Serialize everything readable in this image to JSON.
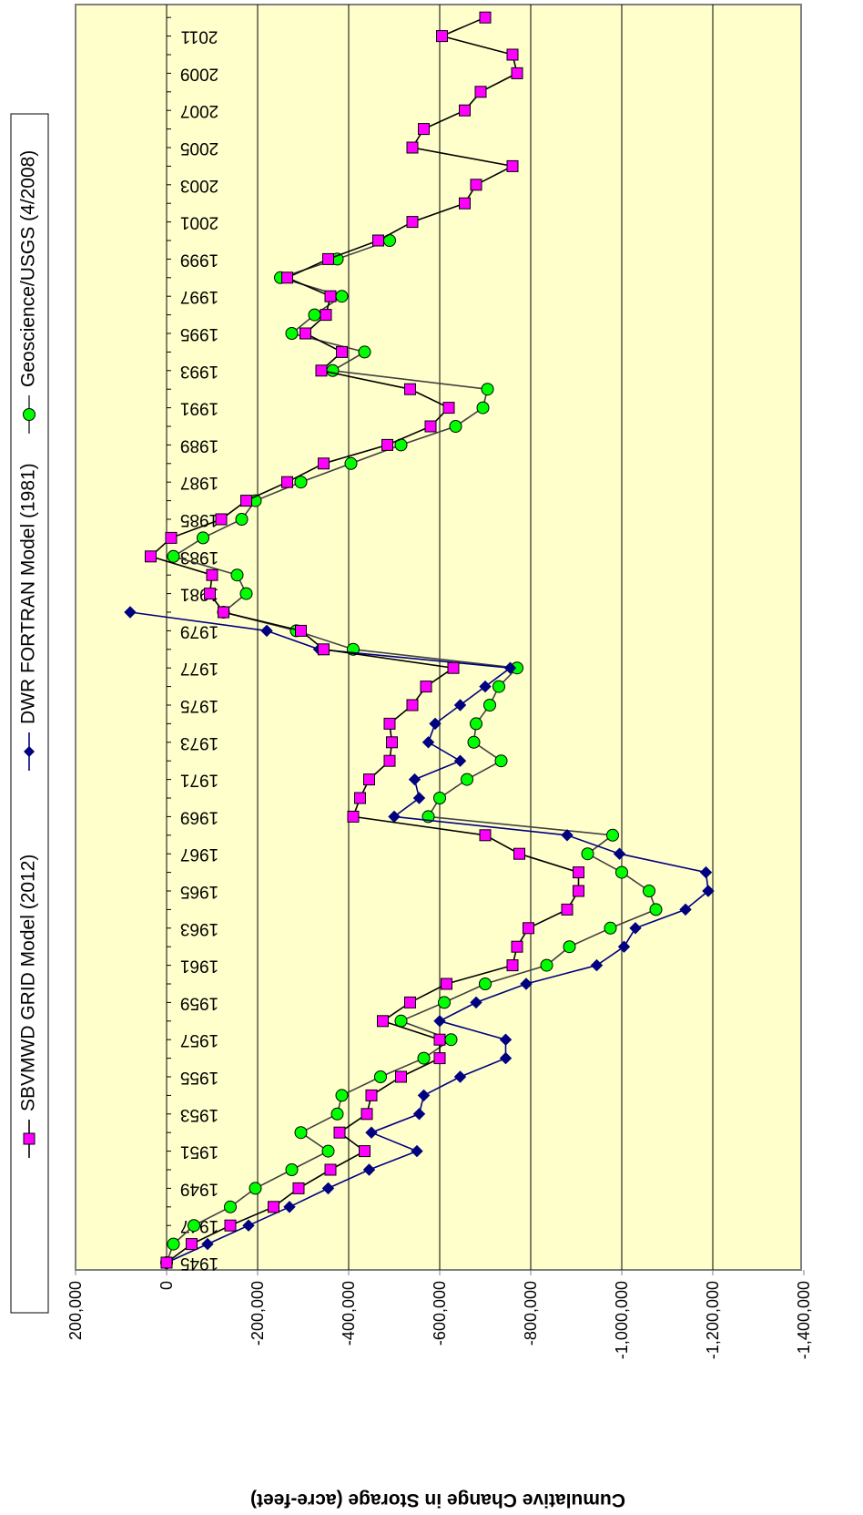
{
  "chart_data": {
    "type": "line",
    "orientation": "rotated-90-clockwise",
    "ylabel": "Cumulative Change in Storage (acre-feet)",
    "ylim": [
      -1400000,
      200000
    ],
    "yticks": [
      200000,
      0,
      -200000,
      -400000,
      -600000,
      -800000,
      -1000000,
      -1200000,
      -1400000
    ],
    "ytick_labels": [
      "200,000",
      "0",
      "-200,000",
      "-400,000",
      "-600,000",
      "-800,000",
      "-1,000,000",
      "-1,200,000",
      "-1,400,000"
    ],
    "xlim": [
      1944.8,
      2012.3
    ],
    "xticks": [
      1945,
      1947,
      1949,
      1951,
      1953,
      1955,
      1957,
      1959,
      1961,
      1963,
      1965,
      1967,
      1969,
      1971,
      1973,
      1975,
      1977,
      1979,
      1981,
      1983,
      1985,
      1987,
      1989,
      1991,
      1993,
      1995,
      1997,
      1999,
      2001,
      2003,
      2005,
      2007,
      2009,
      2011
    ],
    "grid": true,
    "background": "#ffffcc",
    "legend_position": "top",
    "series": [
      {
        "name": "SBVMWD GRID Model (2012)",
        "color": "#000000",
        "marker": "square",
        "marker_color": "#ff00ff",
        "x": [
          1945,
          1946,
          1947,
          1948,
          1949,
          1950,
          1951,
          1952,
          1953,
          1954,
          1955,
          1956,
          1957,
          1958,
          1959,
          1960,
          1961,
          1962,
          1963,
          1964,
          1965,
          1966,
          1967,
          1968,
          1969,
          1970,
          1971,
          1972,
          1973,
          1974,
          1975,
          1976,
          1977,
          1978,
          1979,
          1980,
          1981,
          1982,
          1983,
          1984,
          1985,
          1986,
          1987,
          1988,
          1989,
          1990,
          1991,
          1992,
          1993,
          1994,
          1995,
          1996,
          1997,
          1998,
          1999,
          2000,
          2001,
          2002,
          2003,
          2004,
          2005,
          2006,
          2007,
          2008,
          2009,
          2010,
          2011,
          2012
        ],
        "y": [
          0,
          -55000,
          -140000,
          -235000,
          -290000,
          -360000,
          -435000,
          -380000,
          -440000,
          -450000,
          -515000,
          -600000,
          -600000,
          -475000,
          -535000,
          -615000,
          -760000,
          -770000,
          -795000,
          -880000,
          -905000,
          -905000,
          -775000,
          -700000,
          -410000,
          -425000,
          -445000,
          -490000,
          -495000,
          -490000,
          -540000,
          -570000,
          -630000,
          -345000,
          -295000,
          -125000,
          -95000,
          -100000,
          35000,
          -10000,
          -120000,
          -175000,
          -265000,
          -345000,
          -485000,
          -580000,
          -620000,
          -535000,
          -340000,
          -385000,
          -305000,
          -350000,
          -360000,
          -265000,
          -355000,
          -465000,
          -540000,
          -655000,
          -680000,
          -760000,
          -540000,
          -565000,
          -655000,
          -690000,
          -770000,
          -760000,
          -605000,
          -700000
        ]
      },
      {
        "name": "DWR FORTRAN Model (1981)",
        "color": "#000080",
        "marker": "diamond",
        "marker_color": "#000080",
        "x": [
          1945,
          1946,
          1947,
          1948,
          1949,
          1950,
          1951,
          1952,
          1953,
          1954,
          1955,
          1956,
          1957,
          1958,
          1959,
          1960,
          1961,
          1962,
          1963,
          1964,
          1965,
          1966,
          1967,
          1968,
          1969,
          1970,
          1971,
          1972,
          1973,
          1974,
          1975,
          1976,
          1977,
          1978,
          1979,
          1980
        ],
        "y": [
          0,
          -90000,
          -180000,
          -270000,
          -355000,
          -445000,
          -550000,
          -450000,
          -555000,
          -565000,
          -645000,
          -745000,
          -745000,
          -600000,
          -680000,
          -790000,
          -945000,
          -1005000,
          -1030000,
          -1140000,
          -1190000,
          -1185000,
          -995000,
          -880000,
          -500000,
          -555000,
          -545000,
          -645000,
          -575000,
          -590000,
          -645000,
          -700000,
          -755000,
          -335000,
          -220000,
          80000
        ]
      },
      {
        "name": "Geoscience/USGS (4/2008)",
        "color": "#404040",
        "marker": "circle",
        "marker_color": "#00ff00",
        "x": [
          1945,
          1946,
          1947,
          1948,
          1949,
          1950,
          1951,
          1952,
          1953,
          1954,
          1955,
          1956,
          1957,
          1958,
          1959,
          1960,
          1961,
          1962,
          1963,
          1964,
          1965,
          1966,
          1967,
          1968,
          1969,
          1970,
          1971,
          1972,
          1973,
          1974,
          1975,
          1976,
          1977,
          1978,
          1979,
          1980,
          1981,
          1982,
          1983,
          1984,
          1985,
          1986,
          1987,
          1988,
          1989,
          1990,
          1991,
          1992,
          1993,
          1994,
          1995,
          1996,
          1997,
          1998,
          1999,
          2000
        ],
        "y": [
          0,
          -15000,
          -60000,
          -140000,
          -195000,
          -275000,
          -355000,
          -295000,
          -375000,
          -385000,
          -470000,
          -565000,
          -625000,
          -515000,
          -610000,
          -700000,
          -835000,
          -885000,
          -975000,
          -1075000,
          -1060000,
          -1000000,
          -925000,
          -980000,
          -575000,
          -600000,
          -660000,
          -735000,
          -675000,
          -680000,
          -710000,
          -730000,
          -770000,
          -410000,
          -285000,
          -125000,
          -175000,
          -155000,
          -15000,
          -80000,
          -165000,
          -195000,
          -295000,
          -405000,
          -515000,
          -635000,
          -695000,
          -705000,
          -365000,
          -435000,
          -275000,
          -325000,
          -385000,
          -250000,
          -375000,
          -490000
        ]
      }
    ]
  }
}
